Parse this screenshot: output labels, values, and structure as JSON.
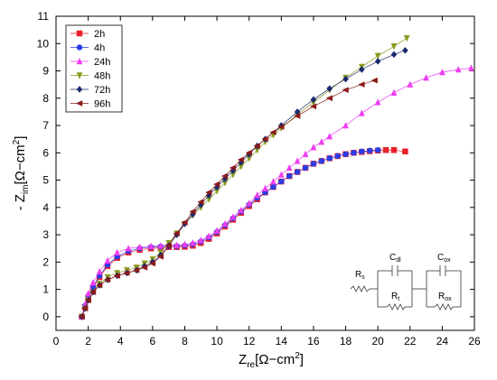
{
  "chart_data": {
    "type": "scatter",
    "xlabel_main": "Z",
    "xlabel_sub": "re",
    "xlabel_unit": "[Ω−cm",
    "xlabel_sup": "2",
    "xlabel_close": "]",
    "ylabel_main": "- Z",
    "ylabel_sub": "im",
    "ylabel_unit": "[Ω−cm",
    "ylabel_sup": "2",
    "ylabel_close": "]",
    "xlim": [
      0,
      26
    ],
    "ylim": [
      -0.5,
      11
    ],
    "xticks": [
      "0",
      "2",
      "4",
      "6",
      "8",
      "10",
      "12",
      "14",
      "16",
      "18",
      "20",
      "22",
      "24",
      "26"
    ],
    "yticks": [
      "0",
      "1",
      "2",
      "3",
      "4",
      "5",
      "6",
      "7",
      "8",
      "9",
      "10",
      "11"
    ],
    "legend_position": "top-left",
    "series": [
      {
        "name": "2h",
        "color": "#e8222b",
        "marker": "square",
        "x": [
          1.6,
          1.8,
          2.0,
          2.3,
          2.7,
          3.2,
          3.8,
          4.5,
          5.2,
          5.9,
          6.5,
          7.0,
          7.5,
          8.0,
          8.5,
          9.0,
          9.5,
          10.0,
          10.5,
          11.0,
          11.5,
          12.0,
          12.5,
          13.0,
          13.5,
          14.0,
          14.5,
          15.0,
          15.5,
          16.0,
          16.5,
          17.0,
          17.5,
          18.0,
          18.5,
          19.0,
          19.5,
          20.0,
          20.5,
          21.0,
          21.7
        ],
        "y": [
          0.0,
          0.35,
          0.7,
          1.05,
          1.45,
          1.85,
          2.15,
          2.35,
          2.45,
          2.5,
          2.52,
          2.55,
          2.55,
          2.56,
          2.6,
          2.7,
          2.85,
          3.05,
          3.3,
          3.55,
          3.8,
          4.05,
          4.3,
          4.55,
          4.75,
          4.95,
          5.15,
          5.3,
          5.45,
          5.6,
          5.7,
          5.8,
          5.88,
          5.95,
          6.0,
          6.03,
          6.06,
          6.08,
          6.1,
          6.1,
          6.05
        ]
      },
      {
        "name": "4h",
        "color": "#2b3be6",
        "marker": "circle",
        "x": [
          1.6,
          1.8,
          2.0,
          2.3,
          2.7,
          3.2,
          3.8,
          4.5,
          5.2,
          5.9,
          6.5,
          7.0,
          7.5,
          8.0,
          8.5,
          9.0,
          9.5,
          10.0,
          10.5,
          11.0,
          11.5,
          12.0,
          12.5,
          13.0,
          13.5,
          14.0,
          14.5,
          15.0,
          15.5,
          16.0,
          16.5,
          17.0,
          17.5,
          18.0,
          18.5,
          19.0,
          19.5,
          20.0
        ],
        "y": [
          0.0,
          0.4,
          0.75,
          1.1,
          1.5,
          1.9,
          2.2,
          2.4,
          2.5,
          2.55,
          2.57,
          2.58,
          2.58,
          2.6,
          2.65,
          2.75,
          2.9,
          3.1,
          3.35,
          3.6,
          3.85,
          4.1,
          4.35,
          4.55,
          4.75,
          4.95,
          5.15,
          5.3,
          5.45,
          5.6,
          5.7,
          5.8,
          5.88,
          5.95,
          6.0,
          6.05,
          6.08,
          6.1
        ]
      },
      {
        "name": "24h",
        "color": "#ee3df0",
        "marker": "triangle-up",
        "x": [
          1.6,
          1.8,
          2.0,
          2.3,
          2.7,
          3.2,
          3.8,
          4.5,
          5.2,
          5.9,
          6.5,
          7.0,
          7.5,
          8.0,
          8.5,
          9.0,
          9.5,
          10.0,
          10.5,
          11.0,
          11.5,
          12.0,
          12.5,
          13.0,
          13.5,
          14.0,
          14.5,
          15.0,
          15.5,
          16.0,
          16.5,
          17.0,
          18.0,
          19.0,
          20.0,
          21.0,
          22.0,
          23.0,
          24.0,
          25.0,
          25.8
        ],
        "y": [
          0.0,
          0.45,
          0.85,
          1.25,
          1.65,
          2.05,
          2.35,
          2.5,
          2.55,
          2.58,
          2.6,
          2.62,
          2.62,
          2.65,
          2.7,
          2.8,
          2.95,
          3.15,
          3.4,
          3.65,
          3.9,
          4.15,
          4.45,
          4.7,
          4.95,
          5.2,
          5.45,
          5.7,
          5.95,
          6.2,
          6.4,
          6.6,
          7.0,
          7.45,
          7.85,
          8.2,
          8.5,
          8.75,
          8.95,
          9.05,
          9.1
        ]
      },
      {
        "name": "48h",
        "color": "#8b9a1f",
        "marker": "triangle-down",
        "x": [
          1.6,
          1.8,
          2.0,
          2.3,
          2.7,
          3.2,
          3.8,
          4.4,
          5.0,
          5.5,
          6.0,
          6.5,
          7.0,
          7.5,
          8.0,
          8.5,
          9.0,
          9.5,
          10.0,
          10.5,
          11.0,
          11.5,
          12.0,
          12.5,
          13.0,
          13.5,
          14.0,
          15.0,
          16.0,
          17.0,
          18.0,
          19.0,
          20.0,
          21.0,
          21.8
        ],
        "y": [
          0.0,
          0.3,
          0.6,
          0.9,
          1.2,
          1.45,
          1.6,
          1.7,
          1.8,
          1.95,
          2.1,
          2.35,
          2.7,
          3.05,
          3.4,
          3.7,
          4.0,
          4.3,
          4.6,
          4.9,
          5.2,
          5.5,
          5.8,
          6.1,
          6.4,
          6.65,
          6.9,
          7.4,
          7.85,
          8.3,
          8.75,
          9.15,
          9.55,
          9.9,
          10.2
        ]
      },
      {
        "name": "72h",
        "color": "#1a2a6e",
        "marker": "diamond",
        "x": [
          1.6,
          1.8,
          2.0,
          2.3,
          2.7,
          3.2,
          3.8,
          4.4,
          5.0,
          5.5,
          6.0,
          6.5,
          7.0,
          7.5,
          8.0,
          8.5,
          9.0,
          9.5,
          10.0,
          10.5,
          11.0,
          11.5,
          12.0,
          12.5,
          13.0,
          14.0,
          15.0,
          16.0,
          17.0,
          18.0,
          19.0,
          20.0,
          21.0,
          21.7
        ],
        "y": [
          0.0,
          0.3,
          0.6,
          0.9,
          1.15,
          1.35,
          1.5,
          1.6,
          1.7,
          1.85,
          2.0,
          2.25,
          2.6,
          3.0,
          3.4,
          3.75,
          4.1,
          4.45,
          4.75,
          5.05,
          5.35,
          5.65,
          5.95,
          6.25,
          6.5,
          7.0,
          7.5,
          7.95,
          8.35,
          8.7,
          9.05,
          9.35,
          9.6,
          9.75
        ]
      },
      {
        "name": "96h",
        "color": "#8b1a1a",
        "marker": "triangle-left",
        "x": [
          1.6,
          1.8,
          2.0,
          2.3,
          2.7,
          3.2,
          3.8,
          4.4,
          5.0,
          5.5,
          6.0,
          6.5,
          7.0,
          7.5,
          8.0,
          8.5,
          9.0,
          9.5,
          10.0,
          10.5,
          11.0,
          11.5,
          12.0,
          12.5,
          13.0,
          13.5,
          14.0,
          15.0,
          16.0,
          17.0,
          18.0,
          19.0,
          19.8
        ],
        "y": [
          0.0,
          0.3,
          0.6,
          0.9,
          1.15,
          1.35,
          1.5,
          1.6,
          1.7,
          1.8,
          1.95,
          2.2,
          2.6,
          3.05,
          3.45,
          3.85,
          4.2,
          4.55,
          4.85,
          5.15,
          5.45,
          5.75,
          6.0,
          6.25,
          6.5,
          6.75,
          6.95,
          7.35,
          7.7,
          8.0,
          8.3,
          8.5,
          8.65
        ]
      }
    ]
  },
  "circuit": {
    "rs_main": "R",
    "rs_sub": "s",
    "cdl_main": "C",
    "cdl_sub": "dl",
    "rt_main": "R",
    "rt_sub": "t",
    "cox_main": "C",
    "cox_sub": "ox",
    "rox_main": "R",
    "rox_sub": "ox"
  }
}
